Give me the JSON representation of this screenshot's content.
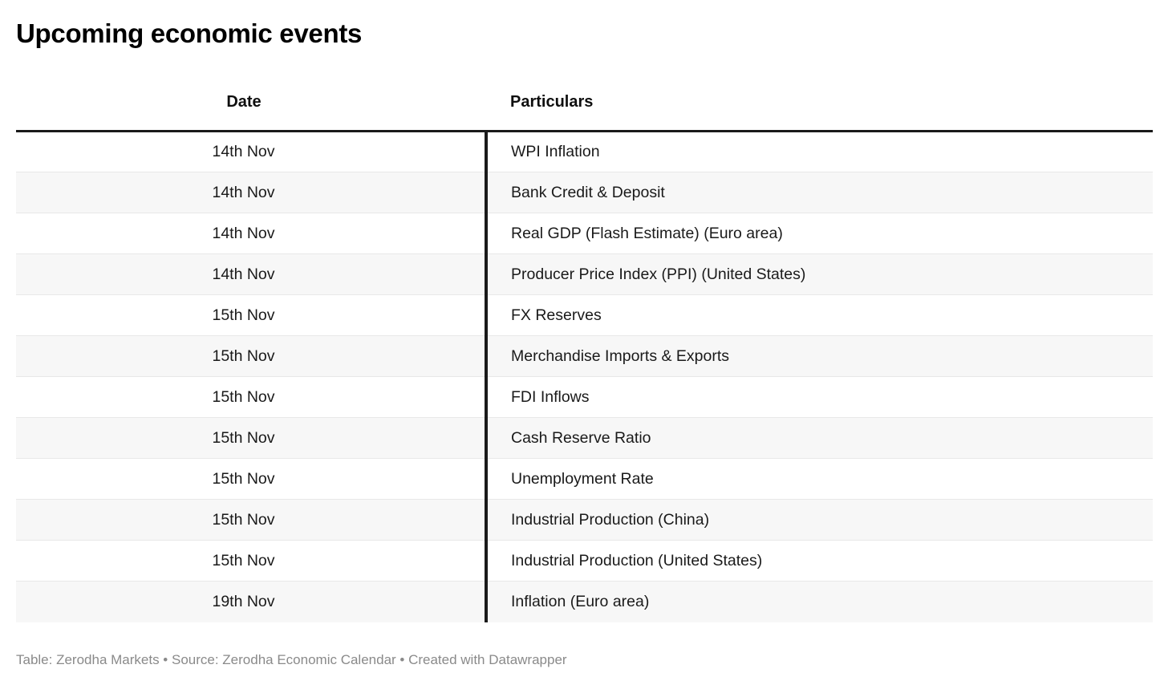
{
  "chart_data": {
    "type": "table",
    "title": "Upcoming economic events",
    "columns": [
      "Date",
      "Particulars"
    ],
    "rows": [
      [
        "14th Nov",
        "WPI Inflation"
      ],
      [
        "14th Nov",
        "Bank Credit & Deposit"
      ],
      [
        "14th Nov",
        "Real GDP (Flash Estimate) (Euro area)"
      ],
      [
        "14th Nov",
        "Producer Price Index (PPI) (United States)"
      ],
      [
        "15th Nov",
        "FX Reserves"
      ],
      [
        "15th Nov",
        "Merchandise Imports & Exports"
      ],
      [
        "15th Nov",
        "FDI Inflows"
      ],
      [
        "15th Nov",
        "Cash Reserve Ratio"
      ],
      [
        "15th Nov",
        "Unemployment Rate"
      ],
      [
        "15th Nov",
        "Industrial Production (China)"
      ],
      [
        "15th Nov",
        "Industrial Production (United States)"
      ],
      [
        "19th Nov",
        "Inflation (Euro area)"
      ]
    ],
    "layout_hints": {
      "stripe_pattern": "even rows shaded",
      "date_column_alignment": "center",
      "particulars_column_alignment": "left"
    }
  },
  "footer": {
    "text": "Table: Zerodha Markets • Source: Zerodha Economic Calendar • Created with Datawrapper"
  },
  "colors": {
    "text": "#1a1a1a",
    "title": "#000000",
    "stripe": "#f7f7f7",
    "row_separator": "#e8e8e8",
    "header_rule": "#1a1a1a",
    "column_divider": "#1a1a1a",
    "footer_text": "#8a8a8a",
    "background": "#ffffff"
  }
}
